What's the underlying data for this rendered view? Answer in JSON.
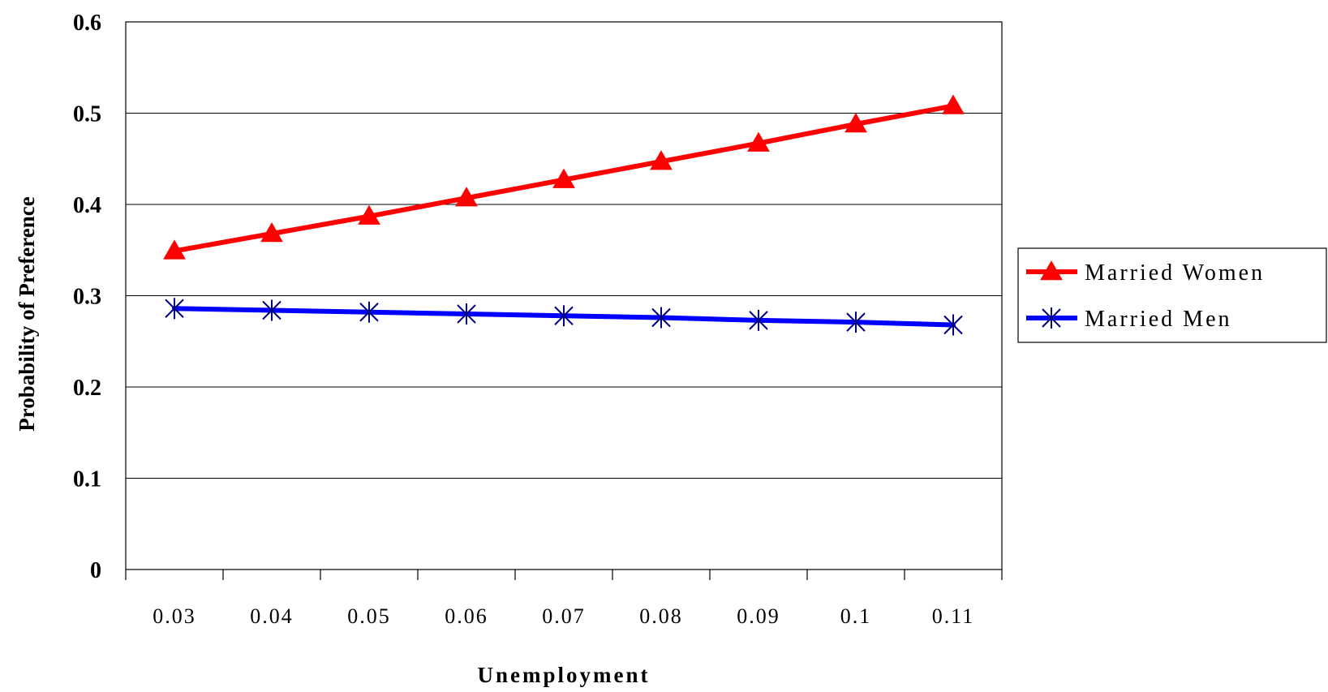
{
  "chart_data": {
    "type": "line",
    "title": "",
    "xlabel": "Unemployment",
    "ylabel": "Probability of Preference",
    "categories": [
      "0.03",
      "0.04",
      "0.05",
      "0.06",
      "0.07",
      "0.08",
      "0.09",
      "0.1",
      "0.11"
    ],
    "ylim": [
      0,
      0.6
    ],
    "yticks": [
      "0",
      "0.1",
      "0.2",
      "0.3",
      "0.4",
      "0.5",
      "0.6"
    ],
    "grid": "horizontal",
    "legend_position": "right",
    "series": [
      {
        "name": "Married Women",
        "color": "#ff0000",
        "marker": "triangle",
        "values": [
          0.349,
          0.368,
          0.387,
          0.407,
          0.427,
          0.447,
          0.467,
          0.488,
          0.508
        ]
      },
      {
        "name": "Married Men",
        "color": "#0000ff",
        "marker_color": "#000080",
        "marker": "asterisk",
        "values": [
          0.286,
          0.284,
          0.282,
          0.28,
          0.278,
          0.276,
          0.273,
          0.271,
          0.268
        ]
      }
    ]
  }
}
